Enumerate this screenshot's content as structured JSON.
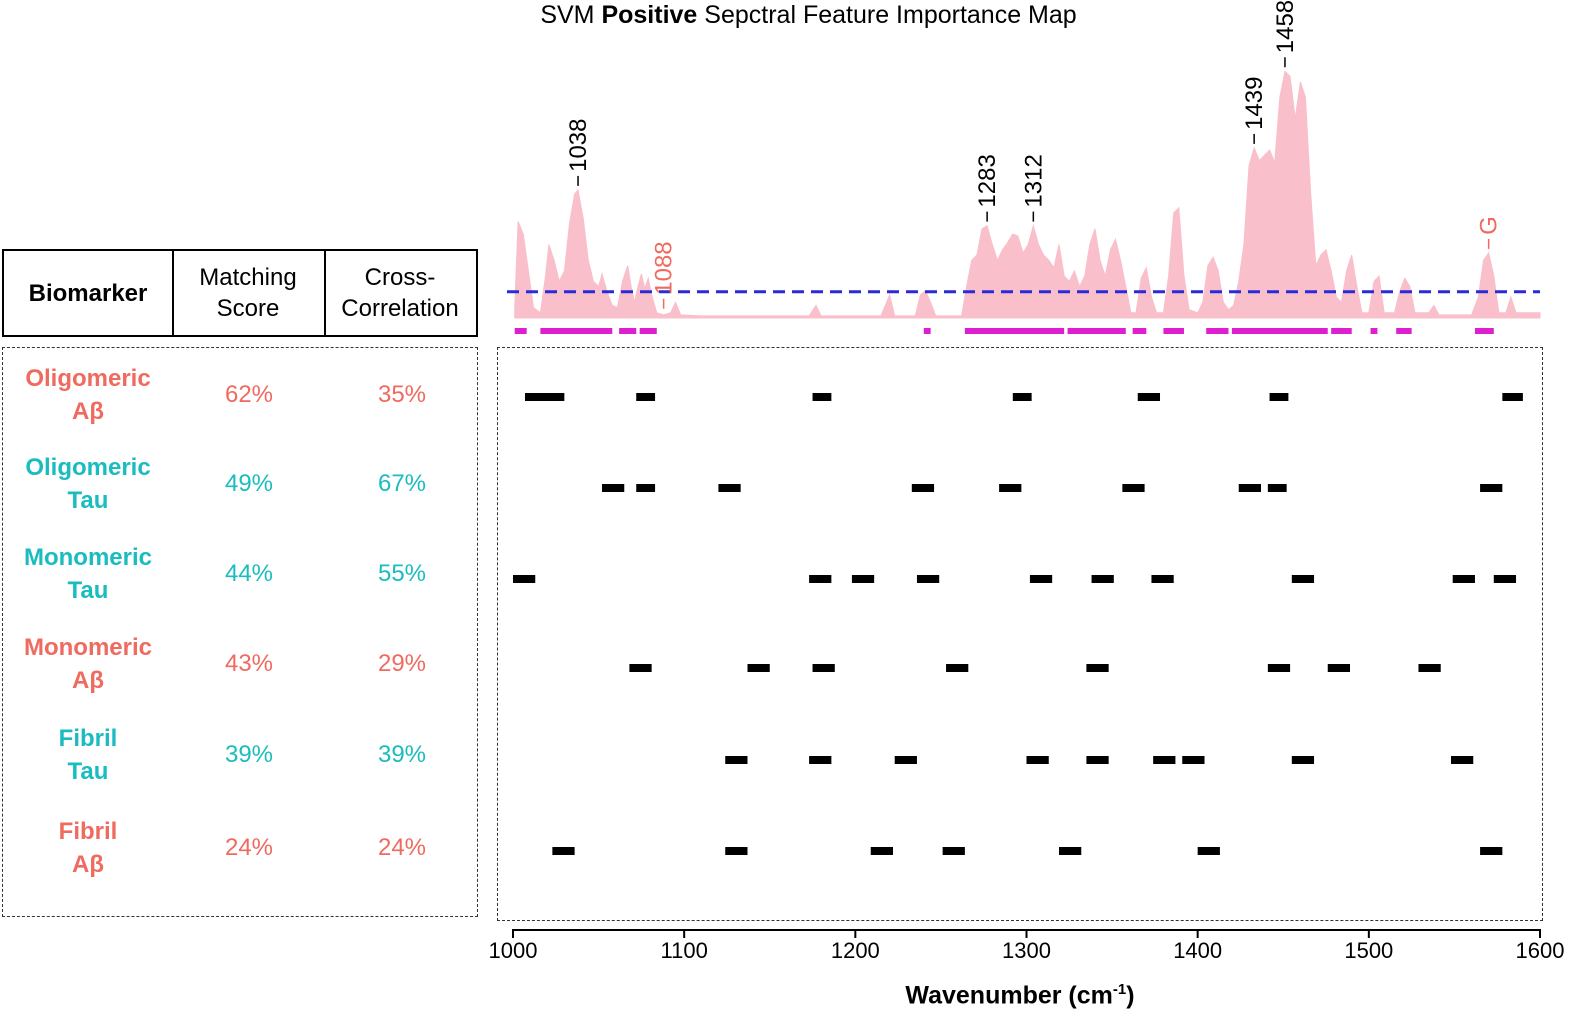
{
  "chart_data": {
    "type": "area",
    "title_prefix": "SVM",
    "title_bold": "Positive",
    "title_suffix": "Sepctral Feature Importance Map",
    "xlabel_main": "Wavenumber (cm",
    "xlabel_sup": "-1",
    "xlabel_end": ")",
    "xlim": [
      1000,
      1600
    ],
    "xticks": [
      1000,
      1100,
      1200,
      1300,
      1400,
      1500,
      1600
    ],
    "importance_profile": [
      [
        1001,
        0.1
      ],
      [
        1003,
        0.92
      ],
      [
        1006,
        0.8
      ],
      [
        1009,
        0.45
      ],
      [
        1012,
        0.1
      ],
      [
        1016,
        0.05
      ],
      [
        1019,
        0.4
      ],
      [
        1021,
        0.7
      ],
      [
        1024,
        0.55
      ],
      [
        1027,
        0.35
      ],
      [
        1030,
        0.45
      ],
      [
        1033,
        0.9
      ],
      [
        1036,
        1.18
      ],
      [
        1038,
        1.22
      ],
      [
        1041,
        0.95
      ],
      [
        1044,
        0.55
      ],
      [
        1047,
        0.35
      ],
      [
        1050,
        0.3
      ],
      [
        1052,
        0.42
      ],
      [
        1055,
        0.25
      ],
      [
        1058,
        0.12
      ],
      [
        1061,
        0.1
      ],
      [
        1064,
        0.35
      ],
      [
        1067,
        0.5
      ],
      [
        1069,
        0.3
      ],
      [
        1071,
        0.15
      ],
      [
        1073,
        0.3
      ],
      [
        1075,
        0.42
      ],
      [
        1077,
        0.28
      ],
      [
        1079,
        0.38
      ],
      [
        1081,
        0.22
      ],
      [
        1084,
        0.05
      ],
      [
        1088,
        0.03
      ],
      [
        1092,
        0.05
      ],
      [
        1095,
        0.15
      ],
      [
        1098,
        0.03
      ],
      [
        1110,
        0.02
      ],
      [
        1130,
        0.02
      ],
      [
        1150,
        0.02
      ],
      [
        1173,
        0.02
      ],
      [
        1177,
        0.12
      ],
      [
        1180,
        0.02
      ],
      [
        1215,
        0.02
      ],
      [
        1220,
        0.22
      ],
      [
        1223,
        0.02
      ],
      [
        1235,
        0.02
      ],
      [
        1238,
        0.22
      ],
      [
        1241,
        0.26
      ],
      [
        1244,
        0.15
      ],
      [
        1247,
        0.02
      ],
      [
        1262,
        0.02
      ],
      [
        1265,
        0.3
      ],
      [
        1268,
        0.55
      ],
      [
        1271,
        0.6
      ],
      [
        1274,
        0.85
      ],
      [
        1277,
        0.88
      ],
      [
        1280,
        0.7
      ],
      [
        1283,
        0.55
      ],
      [
        1286,
        0.65
      ],
      [
        1289,
        0.72
      ],
      [
        1292,
        0.8
      ],
      [
        1295,
        0.78
      ],
      [
        1298,
        0.62
      ],
      [
        1301,
        0.7
      ],
      [
        1304,
        0.88
      ],
      [
        1307,
        0.7
      ],
      [
        1310,
        0.6
      ],
      [
        1313,
        0.55
      ],
      [
        1316,
        0.48
      ],
      [
        1319,
        0.7
      ],
      [
        1322,
        0.4
      ],
      [
        1325,
        0.35
      ],
      [
        1328,
        0.45
      ],
      [
        1331,
        0.3
      ],
      [
        1334,
        0.4
      ],
      [
        1337,
        0.7
      ],
      [
        1340,
        0.85
      ],
      [
        1343,
        0.55
      ],
      [
        1346,
        0.4
      ],
      [
        1349,
        0.65
      ],
      [
        1352,
        0.75
      ],
      [
        1355,
        0.55
      ],
      [
        1358,
        0.3
      ],
      [
        1361,
        0.05
      ],
      [
        1364,
        0.05
      ],
      [
        1367,
        0.38
      ],
      [
        1370,
        0.48
      ],
      [
        1373,
        0.2
      ],
      [
        1376,
        0.05
      ],
      [
        1380,
        0.05
      ],
      [
        1383,
        0.4
      ],
      [
        1386,
        1.0
      ],
      [
        1389,
        1.05
      ],
      [
        1392,
        0.4
      ],
      [
        1395,
        0.08
      ],
      [
        1400,
        0.05
      ],
      [
        1403,
        0.15
      ],
      [
        1406,
        0.5
      ],
      [
        1409,
        0.58
      ],
      [
        1412,
        0.45
      ],
      [
        1415,
        0.15
      ],
      [
        1418,
        0.08
      ],
      [
        1421,
        0.12
      ],
      [
        1424,
        0.35
      ],
      [
        1427,
        0.7
      ],
      [
        1430,
        1.45
      ],
      [
        1433,
        1.62
      ],
      [
        1436,
        1.5
      ],
      [
        1439,
        1.55
      ],
      [
        1442,
        1.6
      ],
      [
        1445,
        1.48
      ],
      [
        1448,
        2.1
      ],
      [
        1451,
        2.35
      ],
      [
        1454,
        2.3
      ],
      [
        1457,
        1.9
      ],
      [
        1460,
        2.25
      ],
      [
        1463,
        2.1
      ],
      [
        1466,
        1.2
      ],
      [
        1469,
        0.5
      ],
      [
        1472,
        0.6
      ],
      [
        1475,
        0.65
      ],
      [
        1478,
        0.45
      ],
      [
        1481,
        0.2
      ],
      [
        1484,
        0.15
      ],
      [
        1487,
        0.45
      ],
      [
        1490,
        0.6
      ],
      [
        1493,
        0.3
      ],
      [
        1496,
        0.05
      ],
      [
        1500,
        0.05
      ],
      [
        1503,
        0.35
      ],
      [
        1506,
        0.4
      ],
      [
        1509,
        0.05
      ],
      [
        1515,
        0.05
      ],
      [
        1518,
        0.25
      ],
      [
        1521,
        0.38
      ],
      [
        1524,
        0.3
      ],
      [
        1527,
        0.05
      ],
      [
        1535,
        0.05
      ],
      [
        1538,
        0.12
      ],
      [
        1541,
        0.03
      ],
      [
        1560,
        0.03
      ],
      [
        1564,
        0.2
      ],
      [
        1567,
        0.55
      ],
      [
        1570,
        0.62
      ],
      [
        1573,
        0.4
      ],
      [
        1576,
        0.05
      ],
      [
        1580,
        0.05
      ],
      [
        1583,
        0.2
      ],
      [
        1586,
        0.05
      ],
      [
        1600,
        0.05
      ]
    ],
    "threshold": 0.25,
    "peak_labels": [
      {
        "label": "1038",
        "x": 1038,
        "y": 1.22,
        "color": "#000000"
      },
      {
        "label": "1088",
        "x": 1088,
        "y": 0.05,
        "color": "#ef6a5f"
      },
      {
        "label": "1283",
        "x": 1277,
        "y": 0.88,
        "color": "#000000"
      },
      {
        "label": "1312",
        "x": 1304,
        "y": 0.88,
        "color": "#000000"
      },
      {
        "label": "1439",
        "x": 1433,
        "y": 1.62,
        "color": "#000000"
      },
      {
        "label": "1458",
        "x": 1451,
        "y": 2.35,
        "color": "#000000"
      },
      {
        "label": "G",
        "x": 1570,
        "y": 0.62,
        "color": "#ef6a5f"
      }
    ],
    "selected_regions": [
      [
        1001,
        1008
      ],
      [
        1016,
        1058
      ],
      [
        1062,
        1072
      ],
      [
        1074,
        1084
      ],
      [
        1240,
        1244
      ],
      [
        1264,
        1322
      ],
      [
        1324,
        1358
      ],
      [
        1362,
        1370
      ],
      [
        1380,
        1392
      ],
      [
        1405,
        1418
      ],
      [
        1420,
        1476
      ],
      [
        1478,
        1490
      ],
      [
        1501,
        1505
      ],
      [
        1516,
        1525
      ],
      [
        1562,
        1573
      ]
    ],
    "biomarker_bands": [
      {
        "name": "Oligomeric Aβ",
        "bands": [
          [
            1007,
            1030
          ],
          [
            1072,
            1083
          ],
          [
            1175,
            1186
          ],
          [
            1292,
            1303
          ],
          [
            1365,
            1378
          ],
          [
            1442,
            1453
          ],
          [
            1578,
            1590
          ]
        ]
      },
      {
        "name": "Oligomeric Tau",
        "bands": [
          [
            1052,
            1065
          ],
          [
            1072,
            1083
          ],
          [
            1120,
            1133
          ],
          [
            1233,
            1246
          ],
          [
            1284,
            1297
          ],
          [
            1356,
            1369
          ],
          [
            1424,
            1437
          ],
          [
            1441,
            1452
          ],
          [
            1565,
            1578
          ]
        ]
      },
      {
        "name": "Monomeric Tau",
        "bands": [
          [
            1000,
            1013
          ],
          [
            1173,
            1186
          ],
          [
            1198,
            1211
          ],
          [
            1236,
            1249
          ],
          [
            1302,
            1315
          ],
          [
            1338,
            1351
          ],
          [
            1373,
            1386
          ],
          [
            1455,
            1468
          ],
          [
            1549,
            1562
          ],
          [
            1573,
            1586
          ]
        ]
      },
      {
        "name": "Monomeric Aβ",
        "bands": [
          [
            1068,
            1081
          ],
          [
            1137,
            1150
          ],
          [
            1175,
            1188
          ],
          [
            1253,
            1266
          ],
          [
            1335,
            1348
          ],
          [
            1441,
            1454
          ],
          [
            1476,
            1489
          ],
          [
            1529,
            1542
          ]
        ]
      },
      {
        "name": "Fibril Tau",
        "bands": [
          [
            1124,
            1137
          ],
          [
            1173,
            1186
          ],
          [
            1223,
            1236
          ],
          [
            1300,
            1313
          ],
          [
            1335,
            1348
          ],
          [
            1374,
            1387
          ],
          [
            1391,
            1404
          ],
          [
            1455,
            1468
          ],
          [
            1548,
            1561
          ]
        ]
      },
      {
        "name": "Fibril Aβ",
        "bands": [
          [
            1023,
            1036
          ],
          [
            1124,
            1137
          ],
          [
            1209,
            1222
          ],
          [
            1251,
            1264
          ],
          [
            1319,
            1332
          ],
          [
            1400,
            1413
          ],
          [
            1565,
            1578
          ]
        ]
      }
    ],
    "colors": {
      "area": "#f9c0cb",
      "threshold": "#2a2ad6",
      "selected": "#dd1fcf",
      "bands": "#000000",
      "abeta": "#ef6a5f",
      "tau": "#1bbcc0"
    }
  },
  "table": {
    "headers": {
      "biomarker": "Biomarker",
      "matching_l1": "Matching",
      "matching_l2": "Score",
      "cross_l1": "Cross-",
      "cross_l2": "Correlation"
    },
    "rows": [
      {
        "name_l1": "Oligomeric",
        "name_l2": "Aβ",
        "matching": "62%",
        "cross": "35%",
        "color": "#ef6a5f"
      },
      {
        "name_l1": "Oligomeric",
        "name_l2": "Tau",
        "matching": "49%",
        "cross": "67%",
        "color": "#1bbcc0"
      },
      {
        "name_l1": "Monomeric",
        "name_l2": "Tau",
        "matching": "44%",
        "cross": "55%",
        "color": "#1bbcc0"
      },
      {
        "name_l1": "Monomeric",
        "name_l2": "Aβ",
        "matching": "43%",
        "cross": "29%",
        "color": "#ef6a5f"
      },
      {
        "name_l1": "Fibril",
        "name_l2": "Tau",
        "matching": "39%",
        "cross": "39%",
        "color": "#1bbcc0"
      },
      {
        "name_l1": "Fibril",
        "name_l2": "Aβ",
        "matching": "24%",
        "cross": "24%",
        "color": "#ef6a5f"
      }
    ]
  }
}
